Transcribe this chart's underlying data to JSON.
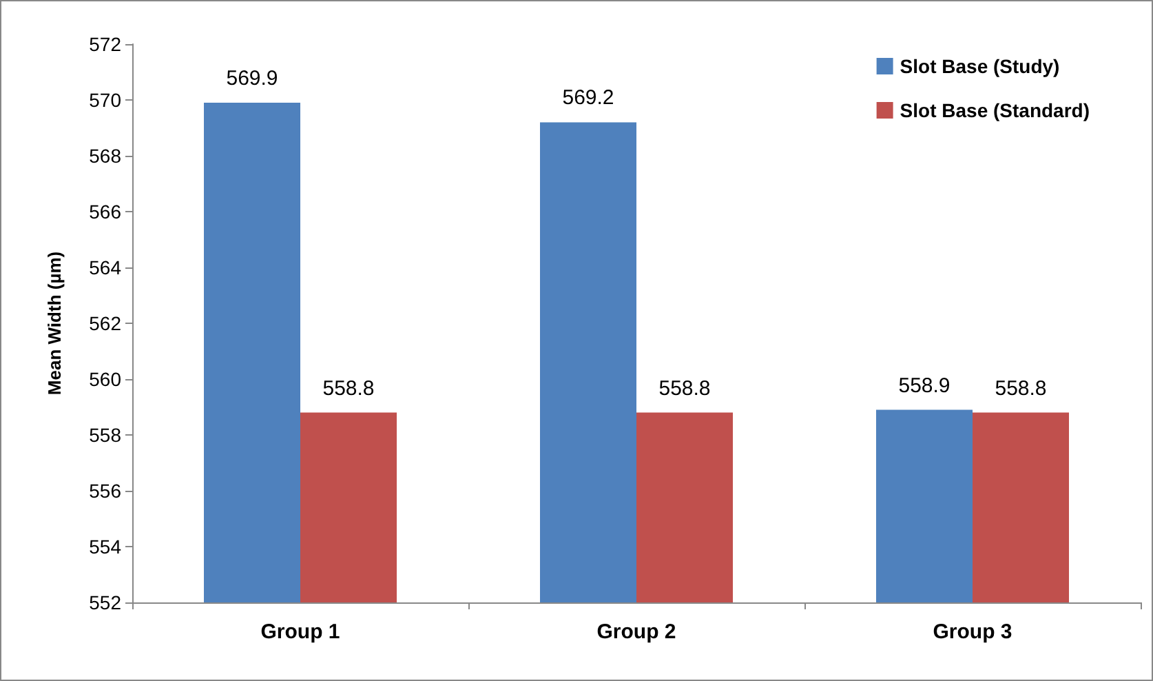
{
  "chart_data": {
    "type": "bar",
    "ylabel": "Mean Width (µm)",
    "categories": [
      "Group 1",
      "Group 2",
      "Group 3"
    ],
    "series": [
      {
        "name": "Slot Base (Study)",
        "color": "#4f81bd",
        "values": [
          569.9,
          569.2,
          558.9
        ]
      },
      {
        "name": "Slot Base (Standard)",
        "color": "#c0504d",
        "values": [
          558.8,
          558.8,
          558.8
        ]
      }
    ],
    "ylim": [
      552,
      572
    ],
    "yticks": [
      552,
      554,
      556,
      558,
      560,
      562,
      564,
      566,
      568,
      570,
      572
    ],
    "grid": false,
    "legend": "top right",
    "data_labels": true
  }
}
